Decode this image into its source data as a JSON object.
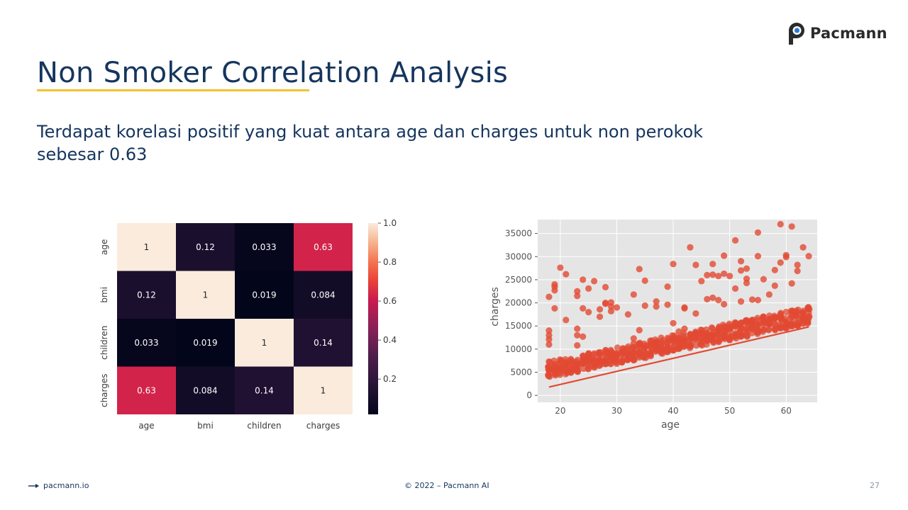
{
  "brand": {
    "name": "Pacmann",
    "logo_icon": "pacmann-logo-icon",
    "accent": "#f2c230",
    "navy": "#15355e"
  },
  "slide": {
    "title": "Non Smoker Correlation Analysis",
    "subtitle": "Terdapat korelasi positif yang kuat antara age dan charges untuk non perokok sebesar 0.63"
  },
  "chart_data": [
    {
      "type": "heatmap",
      "title": "",
      "xlabel": "",
      "ylabel": "",
      "rows": [
        "age",
        "bmi",
        "children",
        "charges"
      ],
      "columns": [
        "age",
        "bmi",
        "children",
        "charges"
      ],
      "values": [
        [
          1,
          0.12,
          0.033,
          0.63
        ],
        [
          0.12,
          1,
          0.019,
          0.084
        ],
        [
          0.033,
          0.019,
          1,
          0.14
        ],
        [
          0.63,
          0.084,
          0.14,
          1
        ]
      ],
      "cell_labels": [
        [
          "1",
          "0.12",
          "0.033",
          "0.63"
        ],
        [
          "0.12",
          "1",
          "0.019",
          "0.084"
        ],
        [
          "0.033",
          "0.019",
          "1",
          "0.14"
        ],
        [
          "0.63",
          "0.084",
          "0.14",
          "1"
        ]
      ],
      "colorbar": {
        "ticks": [
          0.2,
          0.4,
          0.6,
          0.8,
          1.0
        ],
        "tick_labels": [
          "0.2",
          "0.4",
          "0.6",
          "0.8",
          "1.0"
        ],
        "range": [
          0.019,
          1.0
        ]
      }
    },
    {
      "type": "scatter",
      "title": "",
      "xlabel": "age",
      "ylabel": "charges",
      "xlim": [
        16,
        65.5
      ],
      "ylim": [
        -1500,
        38000
      ],
      "xticks": [
        20,
        30,
        40,
        50,
        60
      ],
      "yticks": [
        0,
        5000,
        10000,
        15000,
        20000,
        25000,
        30000,
        35000
      ],
      "grid": true,
      "marker_color": "#e24a33",
      "trend_line": {
        "x": [
          18,
          64
        ],
        "y": [
          1800,
          14800
        ]
      },
      "series": [
        {
          "name": "outliers",
          "points": [
            [
              18,
              7300
            ],
            [
              18,
              11000
            ],
            [
              18,
              12100
            ],
            [
              18,
              13000
            ],
            [
              18,
              14000
            ],
            [
              18,
              21300
            ],
            [
              19,
              22700
            ],
            [
              19,
              23500
            ],
            [
              19,
              24000
            ],
            [
              20,
              27600
            ],
            [
              19,
              18800
            ],
            [
              21,
              26200
            ],
            [
              21,
              16300
            ],
            [
              23,
              22500
            ],
            [
              23,
              21500
            ],
            [
              23,
              14400
            ],
            [
              23,
              13000
            ],
            [
              23,
              10800
            ],
            [
              24,
              12700
            ],
            [
              24,
              18800
            ],
            [
              24,
              25000
            ],
            [
              25,
              23100
            ],
            [
              25,
              18000
            ],
            [
              26,
              24700
            ],
            [
              27,
              17000
            ],
            [
              27,
              18600
            ],
            [
              28,
              23400
            ],
            [
              28,
              20000
            ],
            [
              28,
              19800
            ],
            [
              29,
              19200
            ],
            [
              29,
              20100
            ],
            [
              29,
              18200
            ],
            [
              30,
              19000
            ],
            [
              32,
              17500
            ],
            [
              33,
              21800
            ],
            [
              33,
              12300
            ],
            [
              33,
              11200
            ],
            [
              34,
              14100
            ],
            [
              34,
              27300
            ],
            [
              35,
              24800
            ],
            [
              35,
              19400
            ],
            [
              37,
              20300
            ],
            [
              37,
              19200
            ],
            [
              39,
              19600
            ],
            [
              39,
              23500
            ],
            [
              40,
              28400
            ],
            [
              40,
              15600
            ],
            [
              41,
              13800
            ],
            [
              42,
              18800
            ],
            [
              42,
              19000
            ],
            [
              42,
              14400
            ],
            [
              43,
              32000
            ],
            [
              43,
              13100
            ],
            [
              44,
              17700
            ],
            [
              44,
              28200
            ],
            [
              45,
              24700
            ],
            [
              46,
              26000
            ],
            [
              46,
              20800
            ],
            [
              47,
              26100
            ],
            [
              47,
              21100
            ],
            [
              47,
              28400
            ],
            [
              48,
              25800
            ],
            [
              48,
              20600
            ],
            [
              49,
              30200
            ],
            [
              49,
              26300
            ],
            [
              49,
              19700
            ],
            [
              50,
              25800
            ],
            [
              51,
              23100
            ],
            [
              51,
              33500
            ],
            [
              52,
              27000
            ],
            [
              52,
              29000
            ],
            [
              52,
              20300
            ],
            [
              53,
              27400
            ],
            [
              53,
              25200
            ],
            [
              53,
              24300
            ],
            [
              54,
              20700
            ],
            [
              55,
              35200
            ],
            [
              55,
              30100
            ],
            [
              55,
              20600
            ],
            [
              56,
              25100
            ],
            [
              57,
              21800
            ],
            [
              58,
              23700
            ],
            [
              58,
              27100
            ],
            [
              59,
              37000
            ],
            [
              59,
              28700
            ],
            [
              60,
              29900
            ],
            [
              60,
              30300
            ],
            [
              61,
              36500
            ],
            [
              61,
              24200
            ],
            [
              62,
              26900
            ],
            [
              62,
              28200
            ],
            [
              63,
              32000
            ],
            [
              64,
              30100
            ]
          ]
        }
      ]
    }
  ],
  "footer": {
    "website": "pacmann.io",
    "website_icon": "arrow-right-icon",
    "copyright": "© 2022 – Pacmann AI",
    "page_number": "27"
  }
}
